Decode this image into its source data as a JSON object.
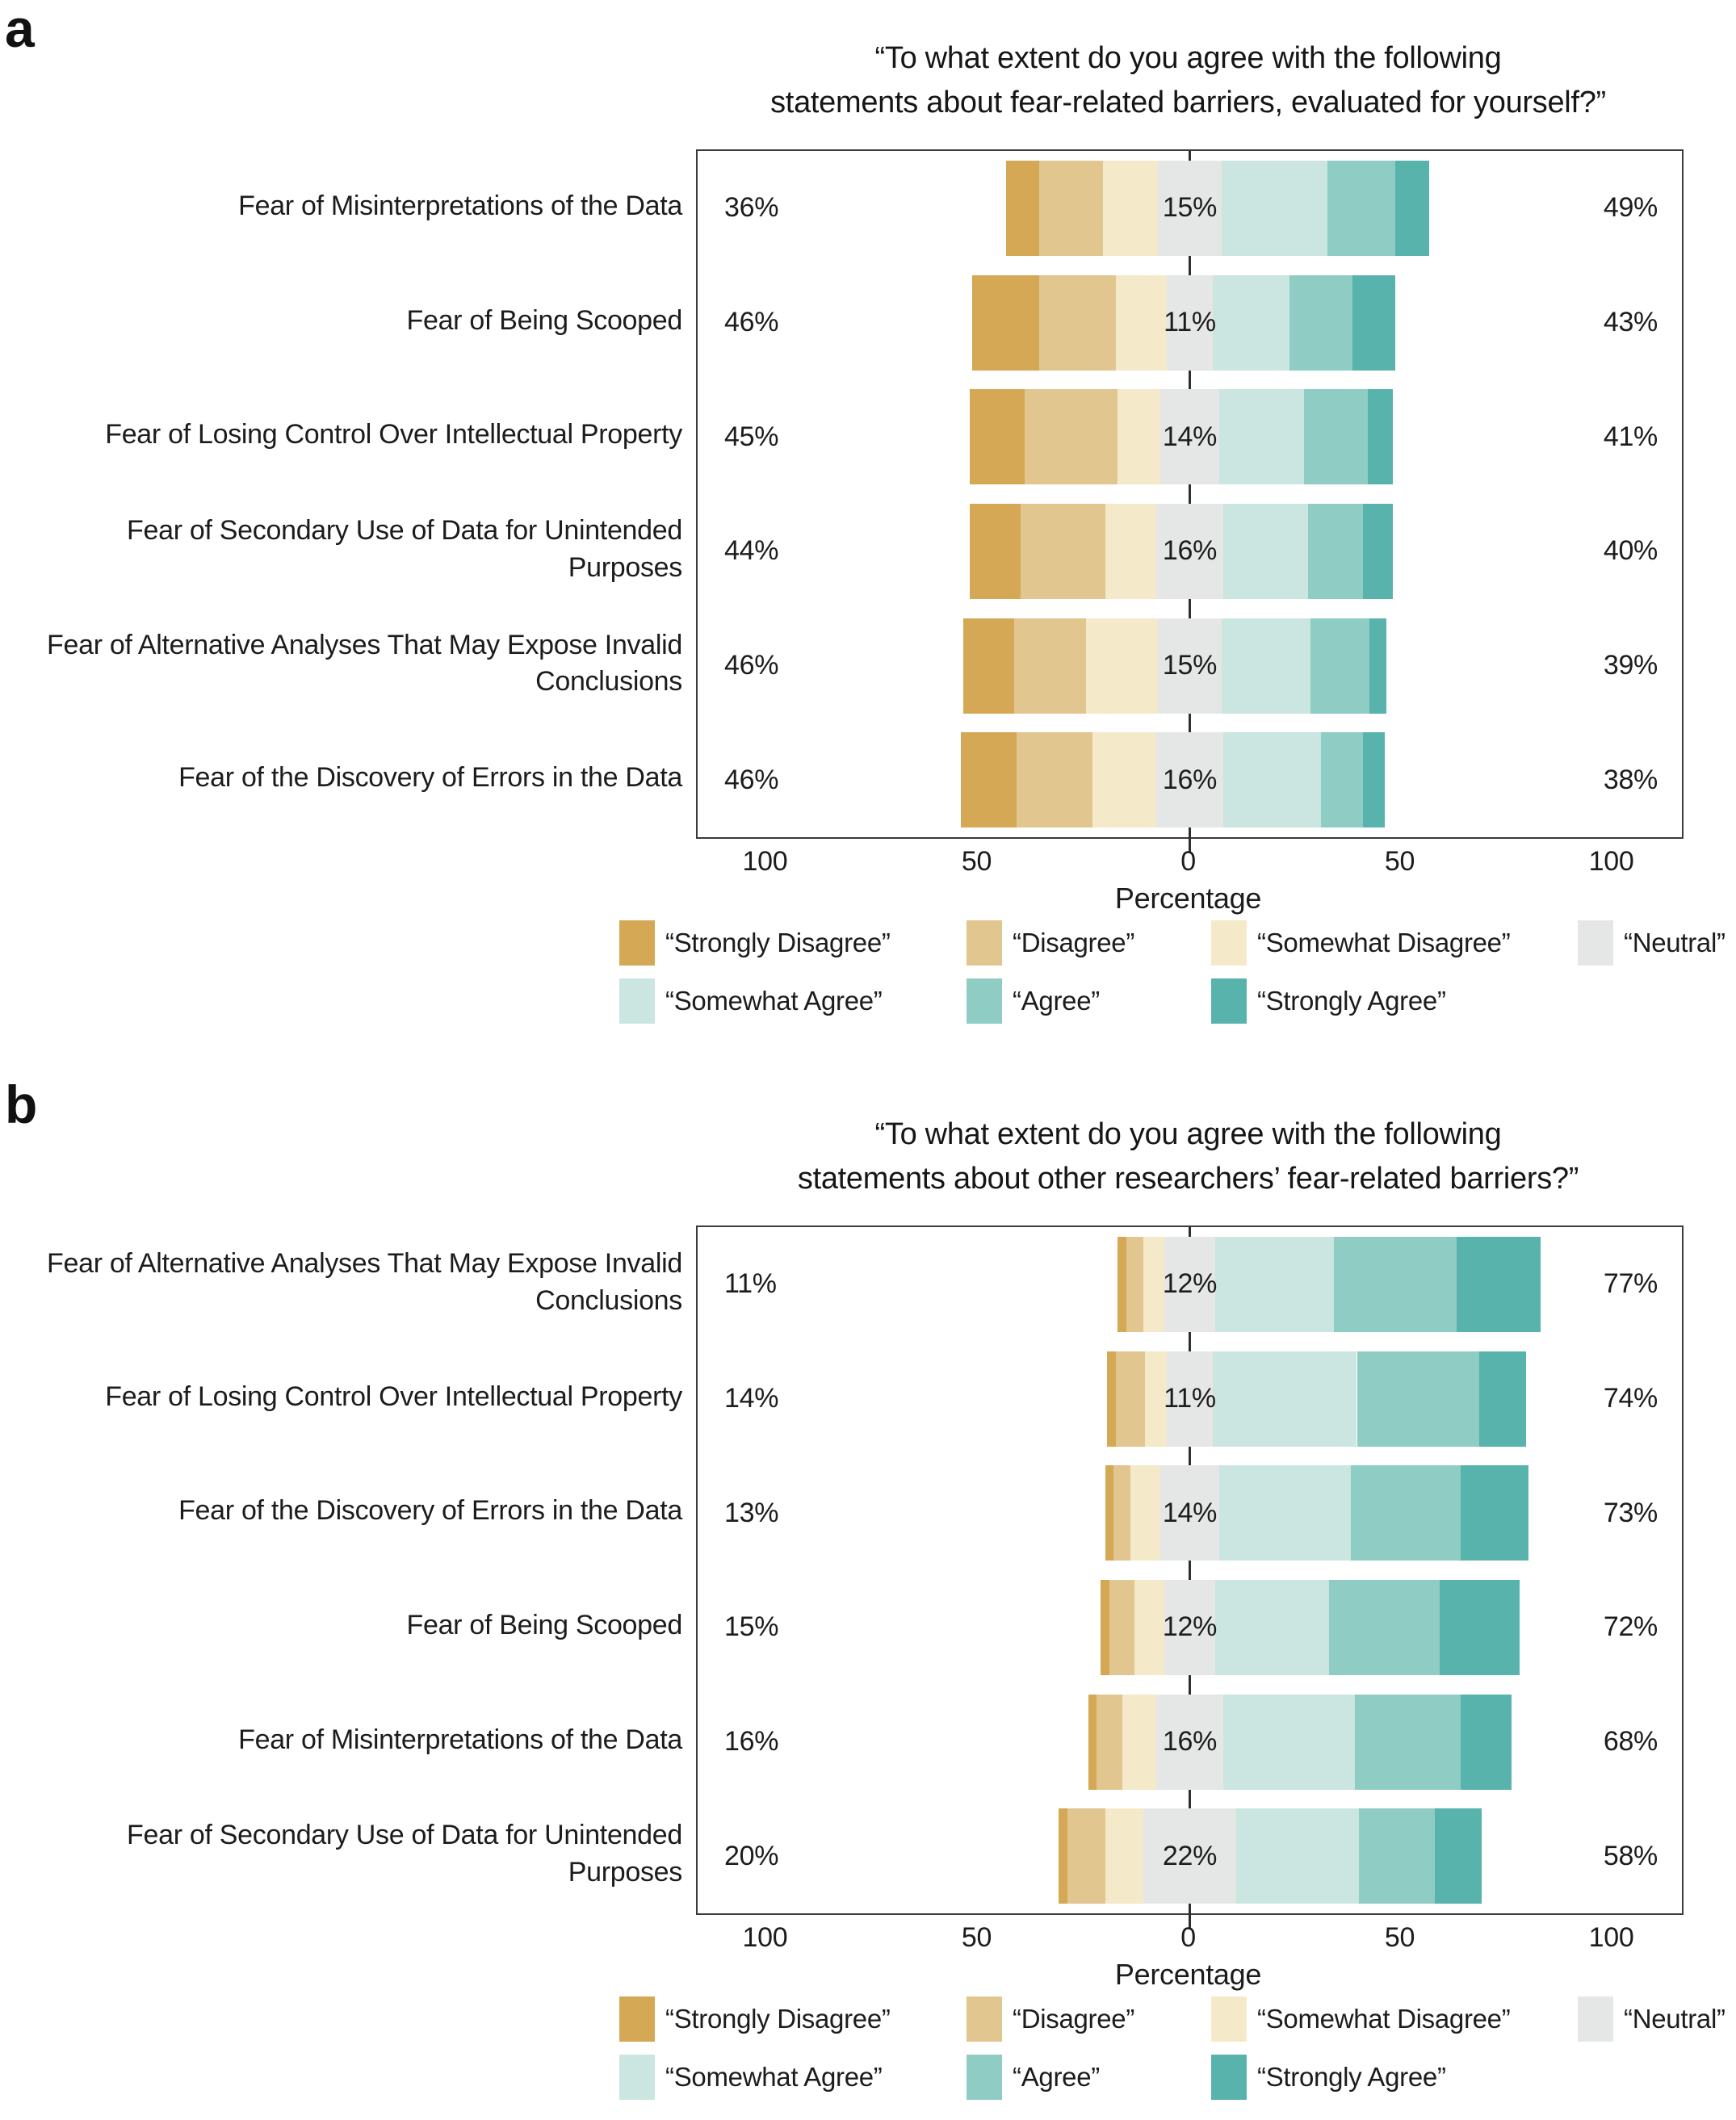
{
  "colors": {
    "strongly_disagree": "#D5A855",
    "disagree": "#E1C690",
    "somewhat_disagree": "#F4E9C8",
    "neutral": "#E5E7E6",
    "somewhat_agree": "#CBE5E0",
    "agree": "#8FCCC4",
    "strongly_agree": "#58B3AC",
    "text": "#1C1C1C",
    "panel_border": "#3A3A3A"
  },
  "axis": {
    "tick_labels": [
      "100",
      "50",
      "0",
      "50",
      "100"
    ],
    "tick_values": [
      -100,
      -50,
      0,
      50,
      100
    ],
    "xlabel": "Percentage"
  },
  "legend": {
    "row1": [
      {
        "key": "strongly_disagree",
        "label": "“Strongly Disagree”"
      },
      {
        "key": "disagree",
        "label": "“Disagree”"
      },
      {
        "key": "somewhat_disagree",
        "label": "“Somewhat Disagree”"
      },
      {
        "key": "neutral",
        "label": "“Neutral”"
      }
    ],
    "row2": [
      {
        "key": "somewhat_agree",
        "label": "“Somewhat Agree”"
      },
      {
        "key": "agree",
        "label": "“Agree”"
      },
      {
        "key": "strongly_agree",
        "label": "“Strongly Agree”"
      }
    ]
  },
  "panels": [
    {
      "letter": "a",
      "title": "“To what extent do you agree with the following\nstatements about fear-related barriers, evaluated for yourself?”",
      "rows": [
        {
          "label": "Fear of Misinterpretations of the Data",
          "left": "36%",
          "neutral": "15%",
          "right": "49%",
          "segments": [
            8,
            15,
            13,
            15,
            25,
            16,
            8
          ]
        },
        {
          "label": "Fear of Being Scooped",
          "left": "46%",
          "neutral": "11%",
          "right": "43%",
          "segments": [
            16,
            18,
            12,
            11,
            18,
            15,
            10
          ]
        },
        {
          "label": "Fear of Losing Control Over Intellectual Property",
          "left": "45%",
          "neutral": "14%",
          "right": "41%",
          "segments": [
            13,
            22,
            10,
            14,
            20,
            15,
            6
          ]
        },
        {
          "label": "Fear of Secondary Use of Data for Unintended Purposes",
          "left": "44%",
          "neutral": "16%",
          "right": "40%",
          "segments": [
            12,
            20,
            12,
            16,
            20,
            13,
            7
          ]
        },
        {
          "label": "Fear of Alternative Analyses That May Expose Invalid Conclusions",
          "left": "46%",
          "neutral": "15%",
          "right": "39%",
          "segments": [
            12,
            17,
            17,
            15,
            21,
            14,
            4
          ]
        },
        {
          "label": "Fear of the Discovery of Errors in the Data",
          "left": "46%",
          "neutral": "16%",
          "right": "38%",
          "segments": [
            13,
            18,
            15,
            16,
            23,
            10,
            5
          ]
        }
      ]
    },
    {
      "letter": "b",
      "title": "“To what extent do you agree with the following\nstatements about other researchers’ fear-related barriers?”",
      "rows": [
        {
          "label": "Fear of Alternative Analyses That May Expose Invalid Conclusions",
          "left": "11%",
          "neutral": "12%",
          "right": "77%",
          "segments": [
            2,
            4,
            5,
            12,
            28,
            29,
            20
          ]
        },
        {
          "label": "Fear of Losing Control Over Intellectual Property",
          "left": "14%",
          "neutral": "11%",
          "right": "74%",
          "segments": [
            2,
            7,
            5,
            11,
            34,
            29,
            11
          ]
        },
        {
          "label": "Fear of the Discovery of Errors in the Data",
          "left": "13%",
          "neutral": "14%",
          "right": "73%",
          "segments": [
            2,
            4,
            7,
            14,
            31,
            26,
            16
          ]
        },
        {
          "label": "Fear of Being Scooped",
          "left": "15%",
          "neutral": "12%",
          "right": "72%",
          "segments": [
            2,
            6,
            7,
            12,
            27,
            26,
            19
          ]
        },
        {
          "label": "Fear of Misinterpretations of the Data",
          "left": "16%",
          "neutral": "16%",
          "right": "68%",
          "segments": [
            2,
            6,
            8,
            16,
            31,
            25,
            12
          ]
        },
        {
          "label": "Fear of Secondary Use of Data for Unintended Purposes",
          "left": "20%",
          "neutral": "22%",
          "right": "58%",
          "segments": [
            2,
            9,
            9,
            22,
            29,
            18,
            11
          ]
        }
      ]
    }
  ],
  "chart_data": [
    {
      "type": "bar",
      "subtype": "diverging_stacked_likert",
      "orientation": "horizontal",
      "title": "“To what extent do you agree with the following statements about fear-related barriers, evaluated for yourself?”",
      "categories": [
        "Fear of Misinterpretations of the Data",
        "Fear of Being Scooped",
        "Fear of Losing Control Over Intellectual Property",
        "Fear of Secondary Use of Data for Unintended Purposes",
        "Fear of Alternative Analyses That May Expose Invalid Conclusions",
        "Fear of the Discovery of Errors in the Data"
      ],
      "series": [
        {
          "name": "“Strongly Disagree”",
          "values": [
            8,
            16,
            13,
            12,
            12,
            13
          ]
        },
        {
          "name": "“Disagree”",
          "values": [
            15,
            18,
            22,
            20,
            17,
            18
          ]
        },
        {
          "name": "“Somewhat Disagree”",
          "values": [
            13,
            12,
            10,
            12,
            17,
            15
          ]
        },
        {
          "name": "“Neutral”",
          "values": [
            15,
            11,
            14,
            16,
            15,
            16
          ]
        },
        {
          "name": "“Somewhat Agree”",
          "values": [
            25,
            18,
            20,
            20,
            21,
            23
          ]
        },
        {
          "name": "“Agree”",
          "values": [
            16,
            15,
            15,
            13,
            14,
            10
          ]
        },
        {
          "name": "“Strongly Agree”",
          "values": [
            8,
            10,
            6,
            7,
            4,
            5
          ]
        }
      ],
      "annotations": {
        "total_disagree_pct": [
          "36%",
          "46%",
          "45%",
          "44%",
          "46%",
          "46%"
        ],
        "neutral_pct": [
          "15%",
          "11%",
          "14%",
          "16%",
          "15%",
          "16%"
        ],
        "total_agree_pct": [
          "49%",
          "43%",
          "41%",
          "40%",
          "39%",
          "38%"
        ]
      },
      "xlabel": "Percentage",
      "x_ticks": [
        -100,
        -50,
        0,
        50,
        100
      ],
      "x_tick_labels": [
        "100",
        "50",
        "0",
        "50",
        "100"
      ],
      "xlim": [
        -116,
        116
      ],
      "neutral_centered_on_zero": true,
      "grid": false,
      "legend_position": "bottom"
    },
    {
      "type": "bar",
      "subtype": "diverging_stacked_likert",
      "orientation": "horizontal",
      "title": "“To what extent do you agree with the following statements about other researchers’ fear-related barriers?”",
      "categories": [
        "Fear of Alternative Analyses That May Expose Invalid Conclusions",
        "Fear of Losing Control Over Intellectual Property",
        "Fear of the Discovery of Errors in the Data",
        "Fear of Being Scooped",
        "Fear of Misinterpretations of the Data",
        "Fear of Secondary Use of Data for Unintended Purposes"
      ],
      "series": [
        {
          "name": "“Strongly Disagree”",
          "values": [
            2,
            2,
            2,
            2,
            2,
            2
          ]
        },
        {
          "name": "“Disagree”",
          "values": [
            4,
            7,
            4,
            6,
            6,
            9
          ]
        },
        {
          "name": "“Somewhat Disagree”",
          "values": [
            5,
            5,
            7,
            7,
            8,
            9
          ]
        },
        {
          "name": "“Neutral”",
          "values": [
            12,
            11,
            14,
            12,
            16,
            22
          ]
        },
        {
          "name": "“Somewhat Agree”",
          "values": [
            28,
            34,
            31,
            27,
            31,
            29
          ]
        },
        {
          "name": "“Agree”",
          "values": [
            29,
            29,
            26,
            26,
            25,
            18
          ]
        },
        {
          "name": "“Strongly Agree”",
          "values": [
            20,
            11,
            16,
            19,
            12,
            11
          ]
        }
      ],
      "annotations": {
        "total_disagree_pct": [
          "11%",
          "14%",
          "13%",
          "15%",
          "16%",
          "20%"
        ],
        "neutral_pct": [
          "12%",
          "11%",
          "14%",
          "12%",
          "16%",
          "22%"
        ],
        "total_agree_pct": [
          "77%",
          "74%",
          "73%",
          "72%",
          "68%",
          "58%"
        ]
      },
      "xlabel": "Percentage",
      "x_ticks": [
        -100,
        -50,
        0,
        50,
        100
      ],
      "x_tick_labels": [
        "100",
        "50",
        "0",
        "50",
        "100"
      ],
      "xlim": [
        -116,
        116
      ],
      "neutral_centered_on_zero": true,
      "grid": false,
      "legend_position": "bottom"
    }
  ]
}
